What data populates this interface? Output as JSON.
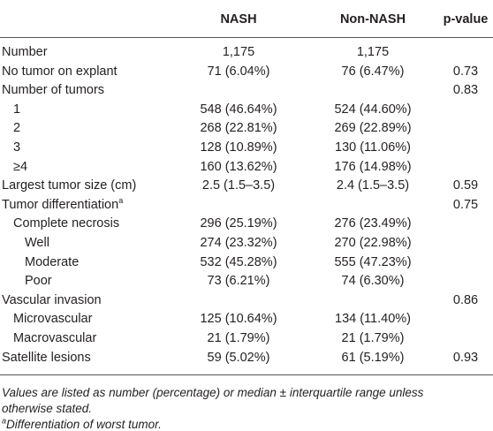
{
  "table": {
    "header": [
      null,
      "NASH",
      "Non-NASH",
      "p-value"
    ],
    "rows": [
      [
        "Number",
        "1,175",
        "1,175",
        null
      ],
      [
        "No tumor on explant",
        "71 (6.04%)",
        "76 (6.47%)",
        "0.73"
      ],
      [
        "Number of tumors",
        null,
        null,
        "0.83"
      ],
      [
        "1",
        "548 (46.64%)",
        "524 (44.60%)",
        null
      ],
      [
        "2",
        "268 (22.81%)",
        "269 (22.89%)",
        null
      ],
      [
        "3",
        "128 (10.89%)",
        "130 (11.06%)",
        null
      ],
      [
        "≥4",
        "160 (13.62%)",
        "176 (14.98%)",
        null
      ],
      [
        "Largest tumor size (cm)",
        "2.5 (1.5–3.5)",
        "2.4 (1.5–3.5)",
        "0.59"
      ],
      [
        "Tumor differentiation",
        null,
        null,
        "0.75"
      ],
      [
        "Complete necrosis",
        "296 (25.19%)",
        "276 (23.49%)",
        null
      ],
      [
        "Well",
        "274 (23.32%)",
        "270 (22.98%)",
        null
      ],
      [
        "Moderate",
        "532 (45.28%)",
        "555 (47.23%)",
        null
      ],
      [
        "Poor",
        "73 (6.21%)",
        "74 (6.30%)",
        null
      ],
      [
        "Vascular invasion",
        null,
        null,
        "0.86"
      ],
      [
        "Microvascular",
        "125 (10.64%)",
        "134 (11.40%)",
        null
      ],
      [
        "Macrovascular",
        "21 (1.79%)",
        "21 (1.79%)",
        null
      ],
      [
        "Satellite lesions",
        "59 (5.02%)",
        "61 (5.19%)",
        "0.93"
      ]
    ],
    "footnote_marker": "a",
    "notes": [
      "Values are listed as number (percentage) or median ± interquartile range unless otherwise stated.",
      "Differentiation of worst tumor."
    ]
  }
}
